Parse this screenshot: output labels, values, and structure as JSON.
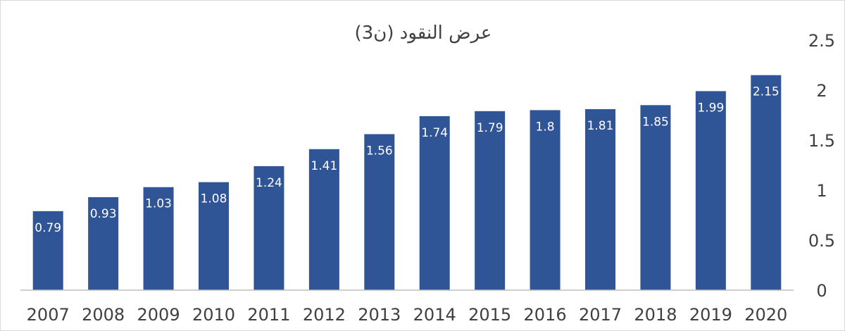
{
  "chart_data": {
    "type": "bar",
    "title": "عرض النقود (ن3)",
    "xlabel": "",
    "ylabel": "",
    "categories": [
      "2007",
      "2008",
      "2009",
      "2010",
      "2011",
      "2012",
      "2013",
      "2014",
      "2015",
      "2016",
      "2017",
      "2018",
      "2019",
      "2020"
    ],
    "values": [
      0.79,
      0.93,
      1.03,
      1.08,
      1.24,
      1.41,
      1.56,
      1.74,
      1.79,
      1.8,
      1.81,
      1.85,
      1.99,
      2.15
    ],
    "data_labels": [
      "0.79",
      "0.93",
      "1.03",
      "1.08",
      "1.24",
      "1.41",
      "1.56",
      "1.74",
      "1.79",
      "1.8",
      "1.81",
      "1.85",
      "1.99",
      "2.15"
    ],
    "y_ticks": [
      "0",
      "0.5",
      "1",
      "1.5",
      "2",
      "2.5"
    ],
    "ylim": [
      0,
      2.5
    ],
    "y_axis_side": "right",
    "grid": false,
    "legend": "none",
    "bar_color": "#2f5597",
    "label_color": "#ffffff",
    "axis_color": "#bfbfbf"
  }
}
